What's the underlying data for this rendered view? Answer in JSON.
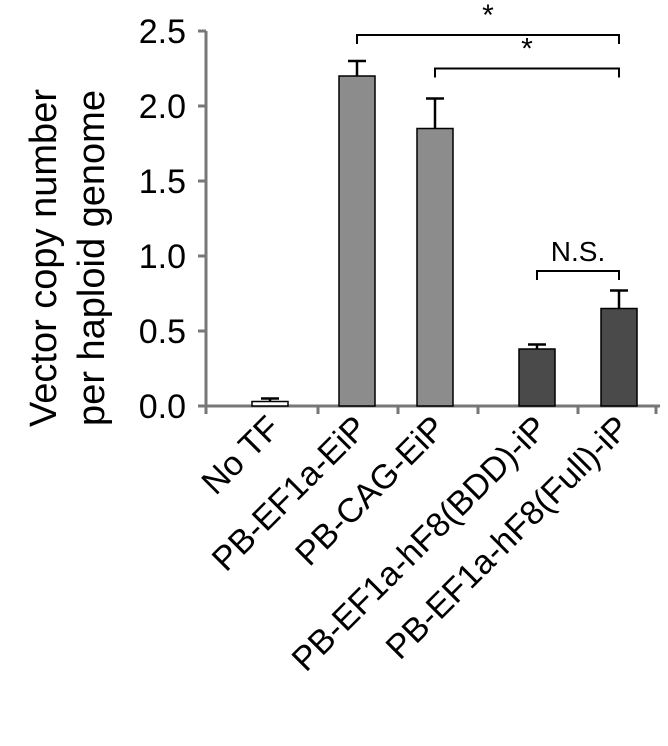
{
  "chart_data": {
    "type": "bar",
    "categories": [
      "No TF",
      "PB-EF1a-EiP",
      "PB-CAG-EiP",
      "PB-EF1a-hF8(BDD)-iP",
      "PB-EF1a-hF8(Full)-iP"
    ],
    "values": [
      0.03,
      2.2,
      1.85,
      0.38,
      0.65
    ],
    "errors": [
      0.02,
      0.1,
      0.2,
      0.03,
      0.12
    ],
    "bar_colors": [
      "#ffffff",
      "#8c8c8c",
      "#8c8c8c",
      "#4a4a4a",
      "#4a4a4a"
    ],
    "ylabel_line1": "Vector copy number",
    "ylabel_line2": "per haploid genome",
    "ylim": [
      0,
      2.5
    ],
    "yticks": [
      "0.0",
      "0.5",
      "1.0",
      "1.5",
      "2.0",
      "2.5"
    ],
    "ytick_values": [
      0,
      0.5,
      1.0,
      1.5,
      2.0,
      2.5
    ],
    "grid": false,
    "annotations": [
      {
        "from": 1,
        "to": 4,
        "label": "*",
        "level": 2.5
      },
      {
        "from": 2,
        "to": 4,
        "label": "*",
        "level": 2.25
      },
      {
        "from": 3,
        "to": 4,
        "label": "N.S.",
        "level": 0.9
      }
    ]
  }
}
